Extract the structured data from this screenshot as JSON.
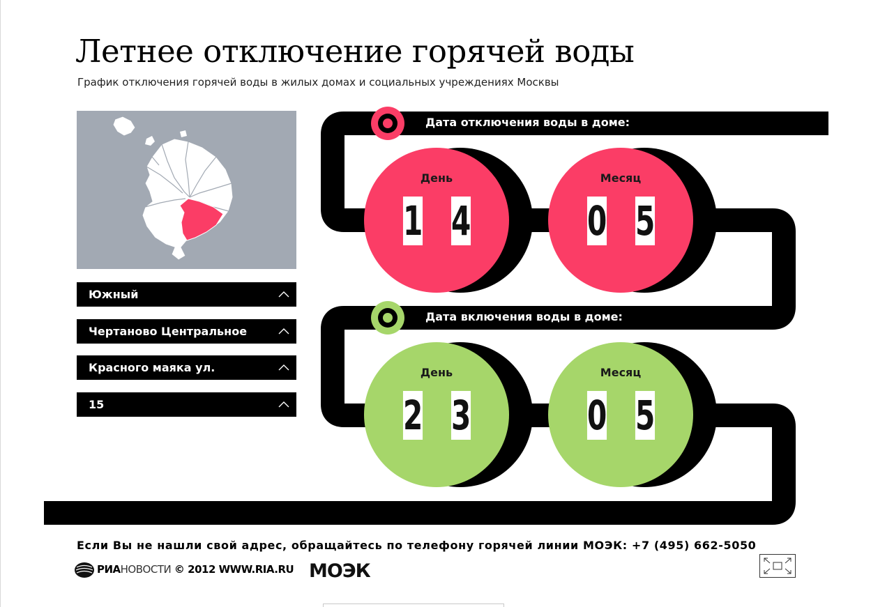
{
  "header": {
    "title": "Летнее отключение горячей воды",
    "subtitle": "График отключения горячей воды в жилых домах и социальных учреждениях Москвы"
  },
  "filters": {
    "district": "Южный",
    "area": "Чертаново Центральное",
    "street": "Красного маяка ул.",
    "house": "15"
  },
  "off_date": {
    "label": "Дата отключения воды в доме:",
    "day_label": "День",
    "month_label": "Месяц",
    "day": [
      "1",
      "4"
    ],
    "month": [
      "0",
      "5"
    ]
  },
  "on_date": {
    "label": "Дата включения воды в доме:",
    "day_label": "День",
    "month_label": "Месяц",
    "day": [
      "2",
      "3"
    ],
    "month": [
      "0",
      "5"
    ]
  },
  "footer": {
    "hotline": "Если Вы не нашли свой адрес, обращайтесь по телефону горячей линии МОЭК: +7 (495) 662-5050",
    "ria_bold": "РИА",
    "ria_thin": "НОВОСТИ",
    "copyright": " © 2012 WWW.RIA.RU",
    "moek": "МОЭК"
  },
  "colors": {
    "off_accent": "#fb3d66",
    "on_accent": "#a6d66a",
    "map_background": "#a2a9b3",
    "track": "#000000"
  },
  "icons": {
    "dropdown": "chevron-up-icon",
    "expand": "expand-icon",
    "ria": "ria-novosti-logo",
    "moek": "moek-logo"
  }
}
